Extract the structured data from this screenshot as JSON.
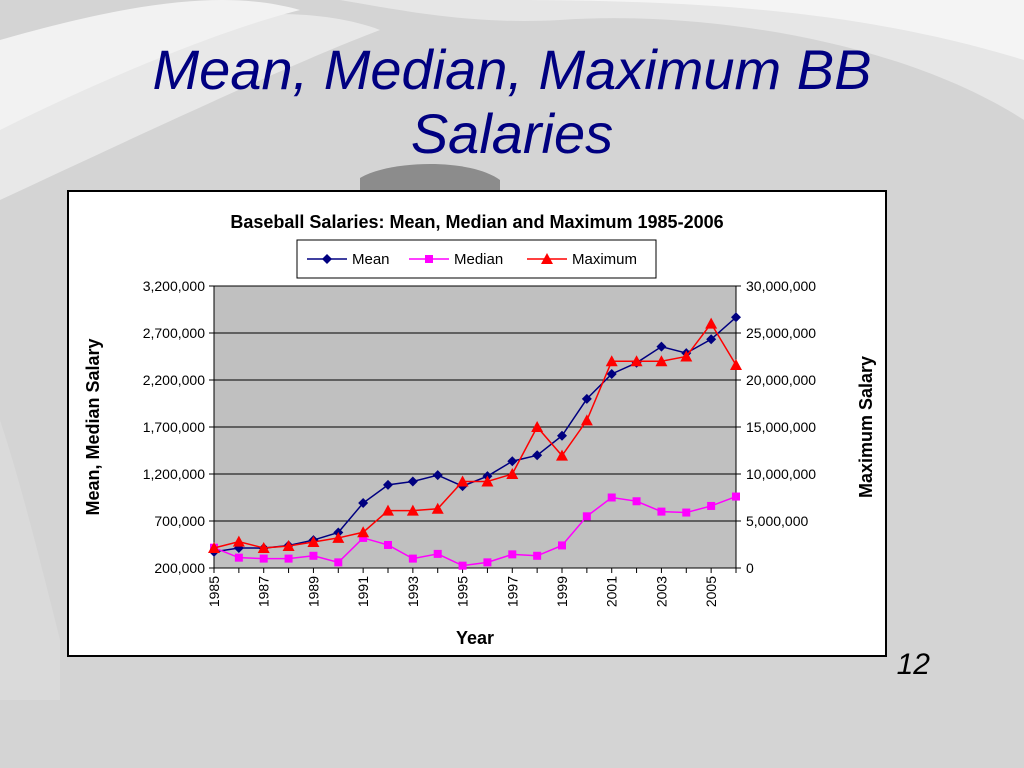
{
  "slide": {
    "title_line1": "Mean, Median, Maximum BB",
    "title_line2": "Salaries",
    "page_number": "12"
  },
  "chart_data": {
    "type": "line",
    "title": "Baseball Salaries: Mean, Median and Maximum 1985-2006",
    "xlabel": "Year",
    "ylabel": "Mean, Median Salary",
    "ylabel_right": "Maximum Salary",
    "x": [
      1985,
      1986,
      1987,
      1988,
      1989,
      1990,
      1991,
      1992,
      1993,
      1994,
      1995,
      1996,
      1997,
      1998,
      1999,
      2000,
      2001,
      2002,
      2003,
      2004,
      2005,
      2006
    ],
    "x_tick_labels": [
      "1985",
      "1987",
      "1989",
      "1991",
      "1993",
      "1995",
      "1997",
      "1999",
      "2001",
      "2003",
      "2005"
    ],
    "ylim": [
      200000,
      3200000
    ],
    "yticks": [
      "3,200,000",
      "2,700,000",
      "2,200,000",
      "1,700,000",
      "1,200,000",
      "700,000",
      "200,000"
    ],
    "ylim_right": [
      0,
      30000000
    ],
    "yticks_right": [
      "30,000,000",
      "25,000,000",
      "20,000,000",
      "15,000,000",
      "10,000,000",
      "5,000,000",
      "0"
    ],
    "legend_position": "top",
    "grid": true,
    "plot_background": "#c0c0c0",
    "series": [
      {
        "name": "Mean",
        "axis": "left",
        "color": "#000080",
        "marker": "diamond",
        "values": [
          371000,
          413000,
          412000,
          439000,
          497000,
          578000,
          891000,
          1084000,
          1120000,
          1188000,
          1071000,
          1177000,
          1336000,
          1399000,
          1607000,
          1999000,
          2264000,
          2383000,
          2555000,
          2486000,
          2633000,
          2867000
        ]
      },
      {
        "name": "Median",
        "axis": "left",
        "color": "#ff00ff",
        "marker": "square",
        "values": [
          416000,
          310000,
          300000,
          300000,
          330000,
          260000,
          520000,
          445000,
          300000,
          350000,
          225000,
          260000,
          345000,
          330000,
          440000,
          750000,
          950000,
          910000,
          800000,
          790000,
          860000,
          960000
        ]
      },
      {
        "name": "Maximum",
        "axis": "right",
        "color": "#ff0000",
        "marker": "triangle",
        "values": [
          2130000,
          2800000,
          2130000,
          2340000,
          2770000,
          3200000,
          3800000,
          6100000,
          6100000,
          6300000,
          9200000,
          9200000,
          10000000,
          15000000,
          11950000,
          15700000,
          22000000,
          22000000,
          22000000,
          22500000,
          26000000,
          21600000
        ]
      }
    ]
  }
}
